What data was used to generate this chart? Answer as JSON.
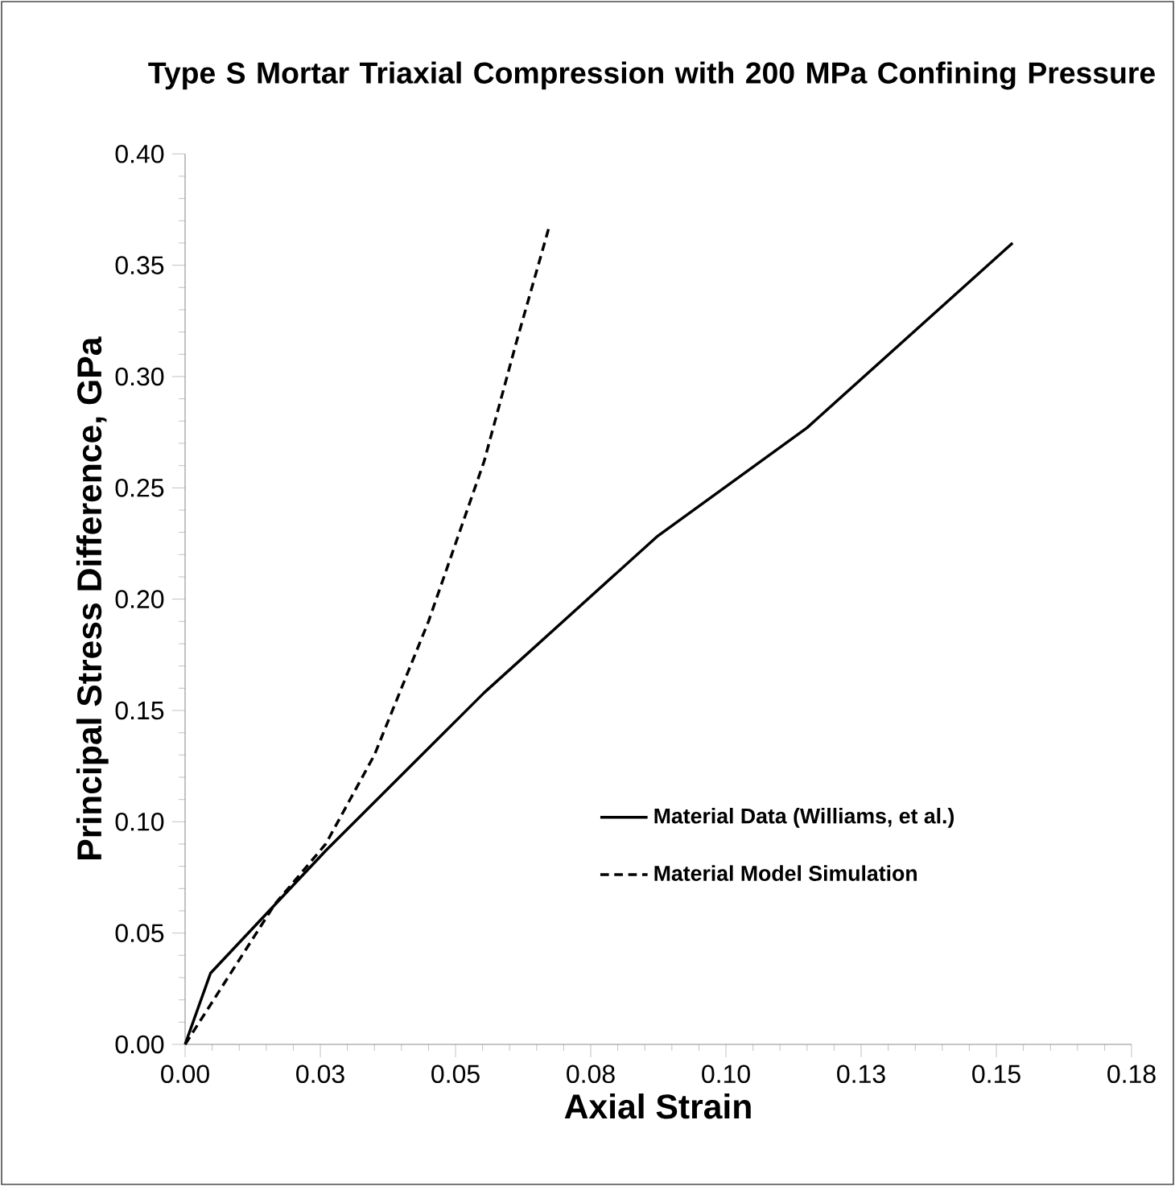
{
  "chart_data": {
    "type": "line",
    "title": "Type S Mortar Triaxial Compression with 200 MPa Confining Pressure",
    "xlabel": "Axial Strain",
    "ylabel": "Principal Stress Difference, GPa",
    "series": [
      {
        "name": "Material Data (Williams, et al.)",
        "color": "#000000",
        "line_style": "solid",
        "x": [
          0,
          0.0047,
          0.026,
          0.0553,
          0.0872,
          0.115,
          0.153
        ],
        "values": [
          0,
          0.032,
          0.087,
          0.158,
          0.228,
          0.277,
          0.36
        ]
      },
      {
        "name": "Material Model Simulation",
        "color": "#000000",
        "line_style": "dashed",
        "x": [
          0,
          0.0166,
          0.026,
          0.035,
          0.045,
          0.0553,
          0.0612,
          0.0674
        ],
        "values": [
          0,
          0.063,
          0.09,
          0.13,
          0.19,
          0.262,
          0.315,
          0.368
        ]
      }
    ],
    "xlim": [
      0,
      0.175
    ],
    "ylim": [
      0,
      0.4
    ],
    "xticks": [
      {
        "value": 0,
        "label": "0.00"
      },
      {
        "value": 0.025,
        "label": "0.03"
      },
      {
        "value": 0.05,
        "label": "0.05"
      },
      {
        "value": 0.075,
        "label": "0.08"
      },
      {
        "value": 0.1,
        "label": "0.10"
      },
      {
        "value": 0.125,
        "label": "0.13"
      },
      {
        "value": 0.15,
        "label": "0.15"
      },
      {
        "value": 0.175,
        "label": "0.18"
      }
    ],
    "yticks": [
      {
        "value": 0,
        "label": "0.00"
      },
      {
        "value": 0.05,
        "label": "0.05"
      },
      {
        "value": 0.1,
        "label": "0.10"
      },
      {
        "value": 0.15,
        "label": "0.15"
      },
      {
        "value": 0.2,
        "label": "0.20"
      },
      {
        "value": 0.25,
        "label": "0.25"
      },
      {
        "value": 0.3,
        "label": "0.30"
      },
      {
        "value": 0.35,
        "label": "0.35"
      },
      {
        "value": 0.4,
        "label": "0.40"
      }
    ],
    "grid": false,
    "legend": "bottom right",
    "marker": "none"
  }
}
